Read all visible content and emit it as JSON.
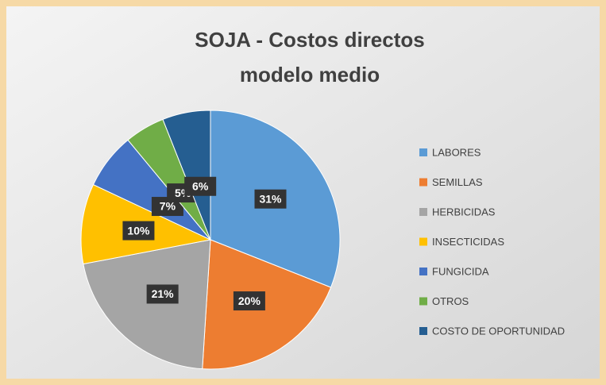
{
  "chart_data": {
    "type": "pie",
    "title": [
      "SOJA - Costos directos",
      "modelo medio"
    ],
    "categories": [
      "LABORES",
      "SEMILLAS",
      "HERBICIDAS",
      "INSECTICIDAS",
      "FUNGICIDA",
      "OTROS",
      "COSTO DE OPORTUNIDAD"
    ],
    "values": [
      31,
      20,
      21,
      10,
      7,
      5,
      6
    ],
    "value_labels": [
      "31%",
      "20%",
      "21%",
      "10%",
      "7%",
      "5%",
      "6%"
    ],
    "colors": [
      "#5b9bd5",
      "#ed7d31",
      "#a5a5a5",
      "#ffc000",
      "#4472c4",
      "#70ad47",
      "#255e91"
    ],
    "legend": "right"
  }
}
